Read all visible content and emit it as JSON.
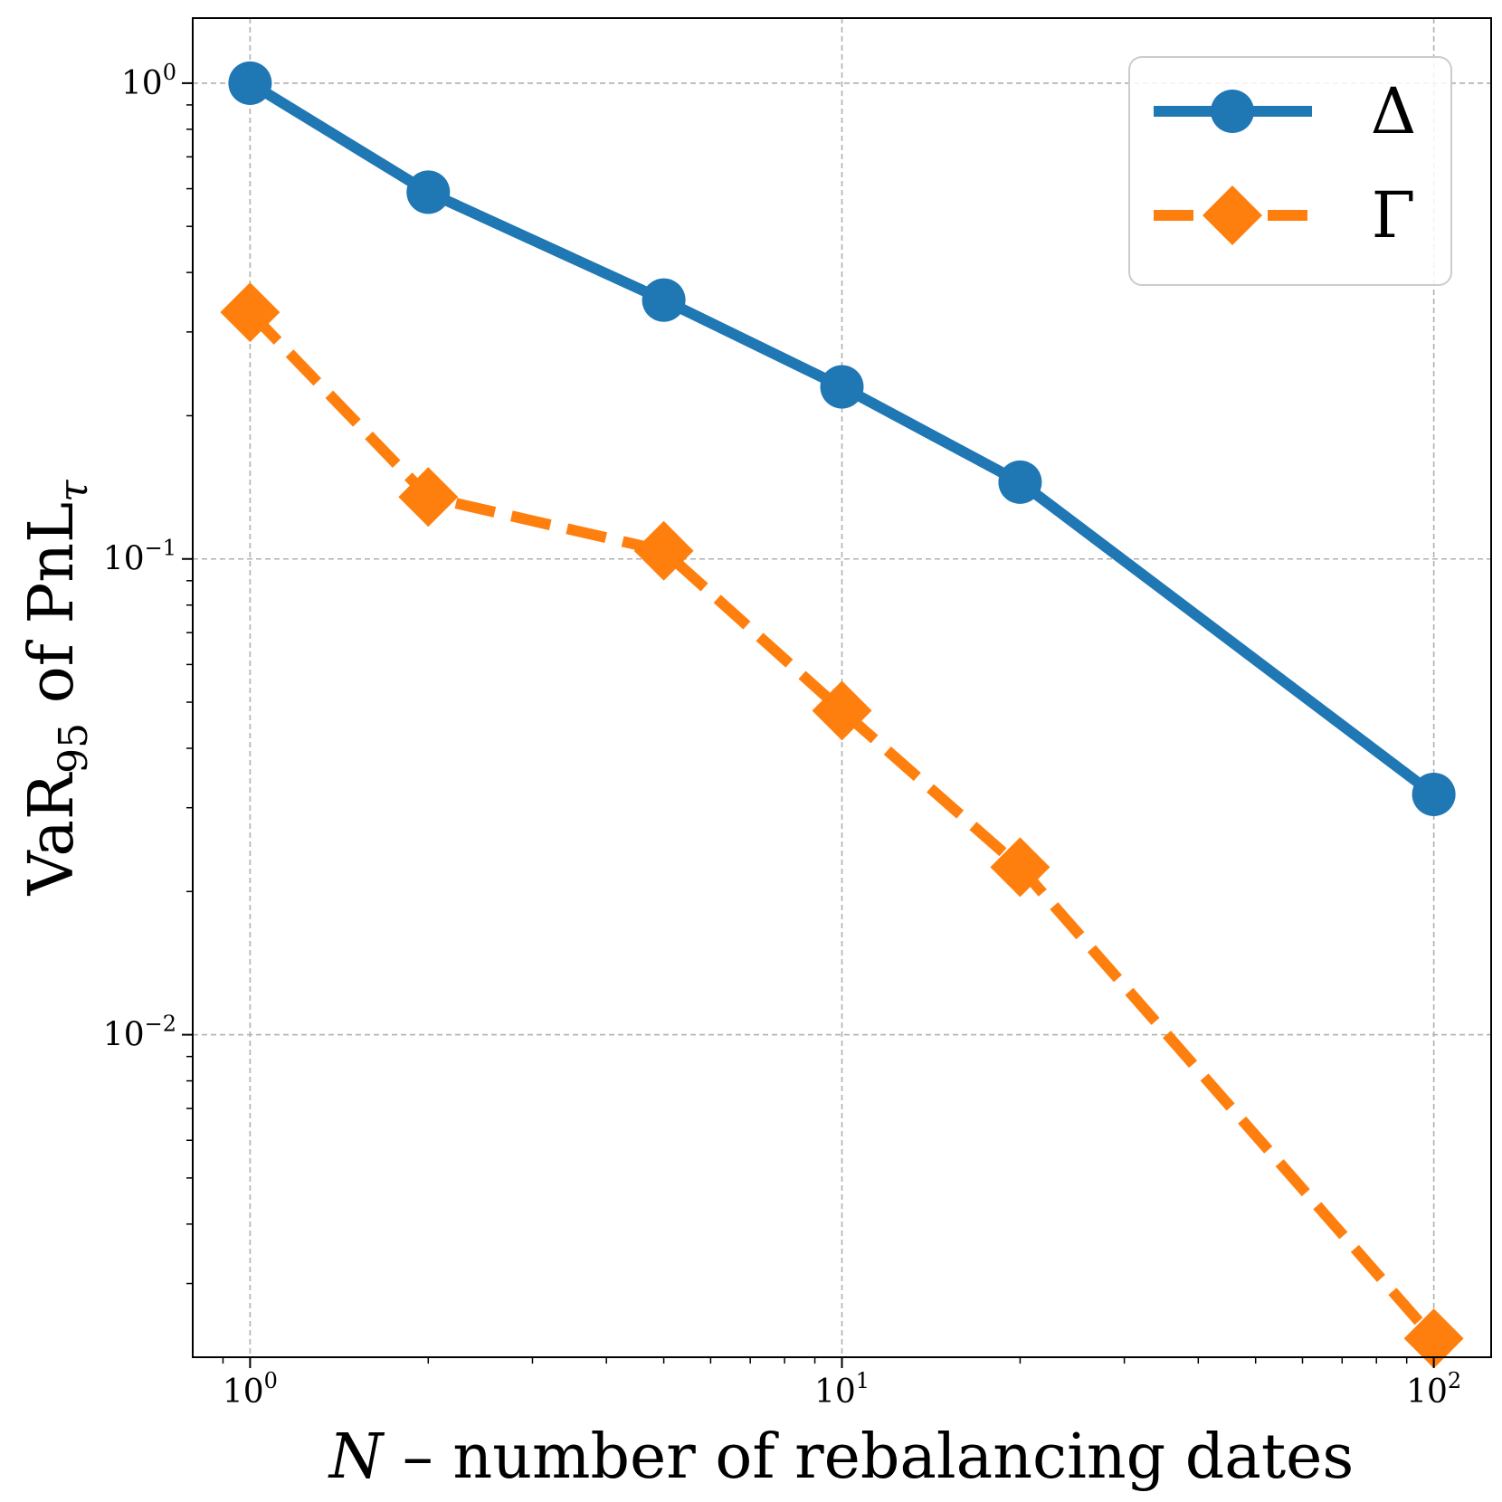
{
  "chart_data": {
    "type": "line",
    "title": "",
    "xlabel_var": "N",
    "xlabel_rest": " – number of rebalancing dates",
    "ylabel_main": "VaR",
    "ylabel_sub": "95",
    "ylabel_mid": " of PnL",
    "ylabel_sub2": "τ",
    "x_scale": "log",
    "y_scale": "log",
    "xlim": [
      0.8,
      125
    ],
    "ylim": [
      0.0021,
      1.37
    ],
    "x_ticks": [
      {
        "value": 1,
        "base": "10",
        "exp": "0"
      },
      {
        "value": 10,
        "base": "10",
        "exp": "1"
      },
      {
        "value": 100,
        "base": "10",
        "exp": "2"
      }
    ],
    "y_ticks": [
      {
        "value": 1,
        "base": "10",
        "exp": "0"
      },
      {
        "value": 0.1,
        "base": "10",
        "exp": "−1"
      },
      {
        "value": 0.01,
        "base": "10",
        "exp": "−2"
      }
    ],
    "grid": true,
    "legend_position": "top-right",
    "series": [
      {
        "name": "Δ",
        "color": "#1f77b4",
        "line_style": "solid",
        "marker": "circle",
        "x": [
          1,
          2,
          5,
          10,
          20,
          100
        ],
        "y": [
          1.0,
          0.59,
          0.35,
          0.23,
          0.145,
          0.032
        ]
      },
      {
        "name": "Γ",
        "color": "#ff7f0e",
        "line_style": "dashed",
        "marker": "diamond",
        "x": [
          1,
          2,
          5,
          10,
          20,
          100
        ],
        "y": [
          0.33,
          0.135,
          0.104,
          0.048,
          0.0225,
          0.0023
        ]
      }
    ]
  }
}
